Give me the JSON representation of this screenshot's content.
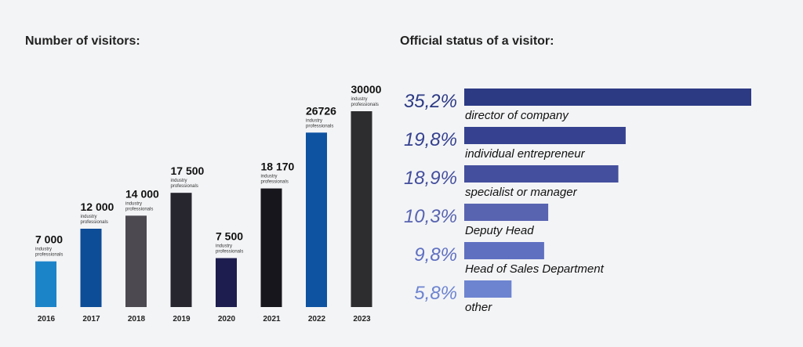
{
  "chart_data": [
    {
      "type": "bar",
      "title": "Number of visitors:",
      "categories": [
        "2016",
        "2017",
        "2018",
        "2019",
        "2020",
        "2021",
        "2022",
        "2023"
      ],
      "values": [
        7000,
        12000,
        14000,
        17500,
        7500,
        18170,
        26726,
        30000
      ],
      "value_labels": [
        "7 000",
        "12 000",
        "14 000",
        "17 500",
        "7 500",
        "18 170",
        "26726",
        "30000"
      ],
      "unit_line1": "industry",
      "unit_line2": "professionals",
      "colors": [
        "#1b84c9",
        "#0d4c97",
        "#4c4950",
        "#27262f",
        "#1e1d4f",
        "#17161c",
        "#0d53a2",
        "#2d2d2f"
      ],
      "xlabel": "",
      "ylabel": "",
      "ylim": [
        0,
        30000
      ]
    },
    {
      "type": "bar",
      "orientation": "horizontal",
      "title": "Official status of a visitor:",
      "categories": [
        "director of company",
        "individual entrepreneur",
        "specialist or manager",
        "Deputy Head",
        "Head of Sales Department",
        "other"
      ],
      "values": [
        35.2,
        19.8,
        18.9,
        10.3,
        9.8,
        5.8
      ],
      "value_labels": [
        "35,2%",
        "19,8%",
        "18,9%",
        "10,3%",
        "9,8%",
        "5,8%"
      ],
      "colors": [
        "#2c3a84",
        "#36428f",
        "#444f9d",
        "#5864b0",
        "#5f70c1",
        "#6d84d0"
      ],
      "xlim": [
        0,
        35.2
      ]
    }
  ]
}
